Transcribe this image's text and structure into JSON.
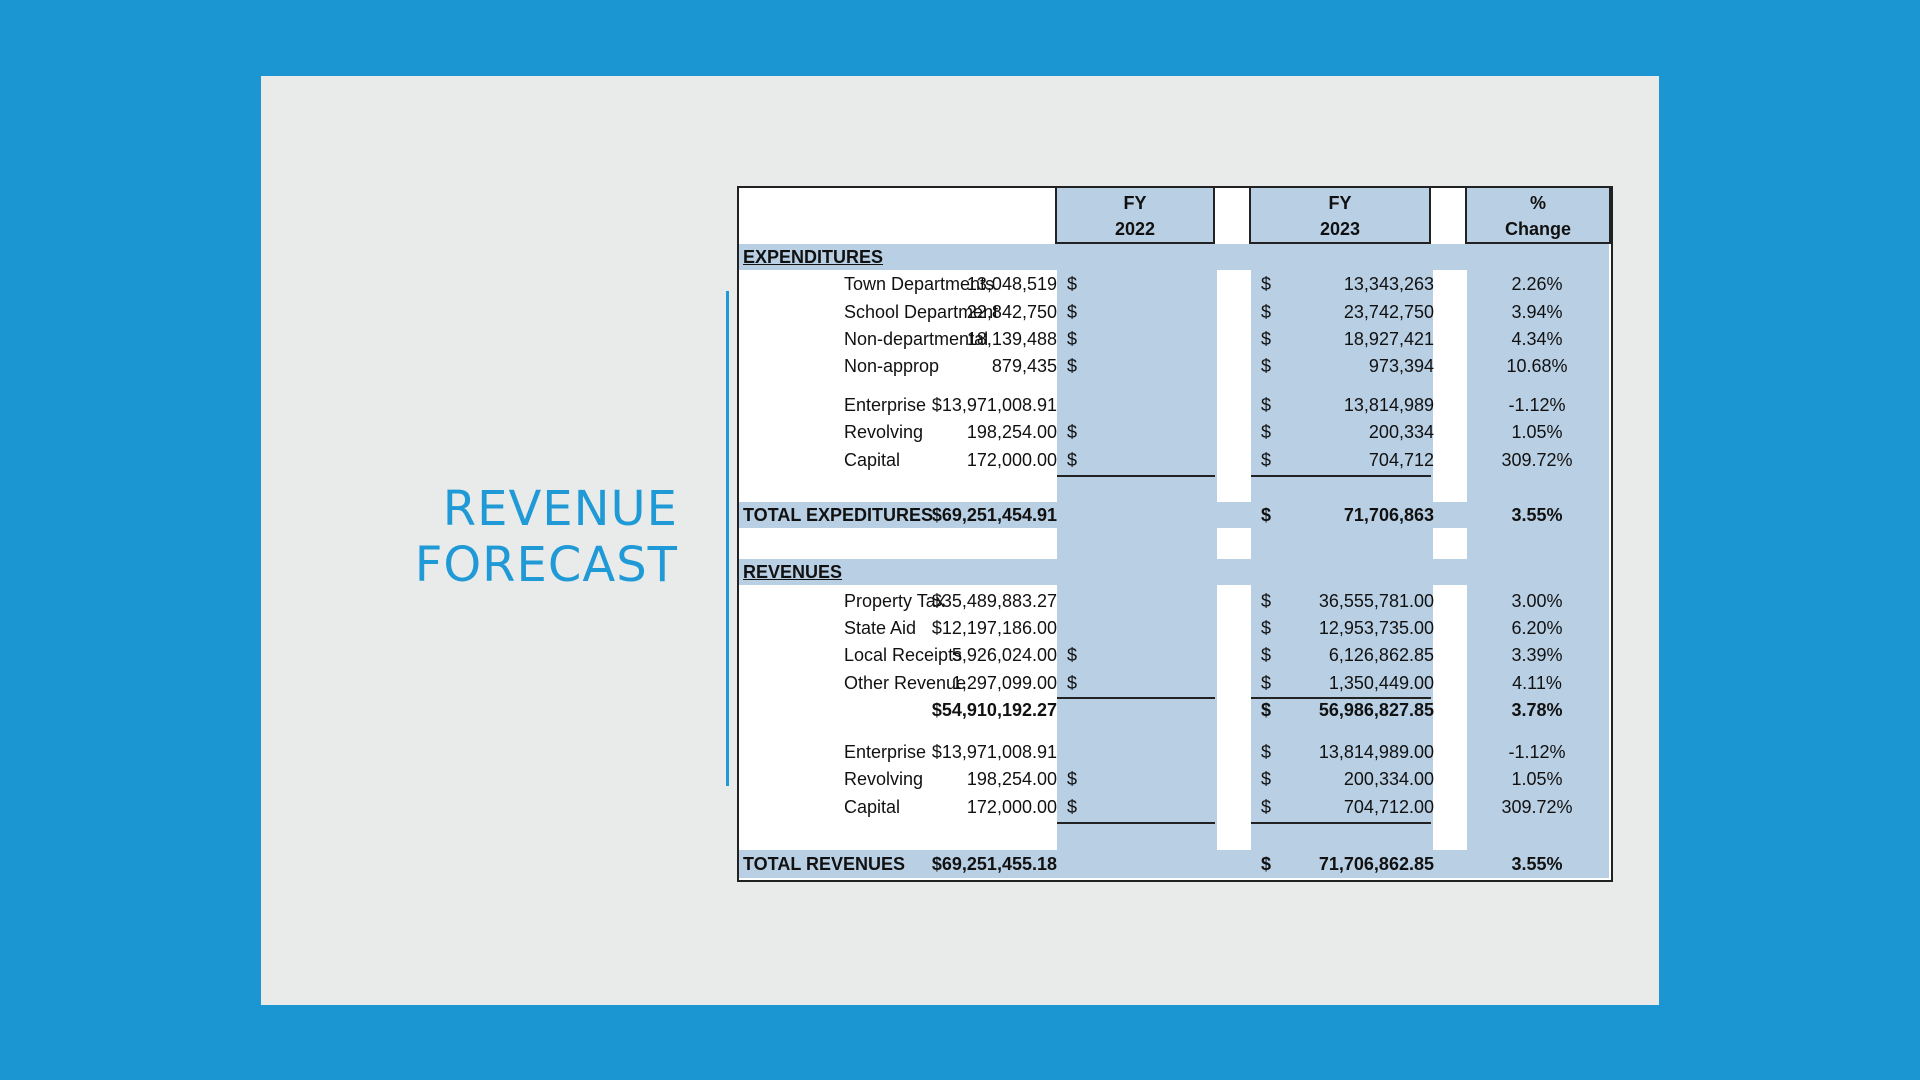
{
  "slide": {
    "title_line1": "REVENUE",
    "title_line2": "FORECAST"
  },
  "table": {
    "headers": {
      "fy2022_line1": "FY",
      "fy2022_line2": "2022",
      "fy2023_line1": "FY",
      "fy2023_line2": "2023",
      "change_line1": "%",
      "change_line2": "Change"
    },
    "expenditures": {
      "section_label": "EXPENDITURES",
      "rows": [
        {
          "label": "Town Departments",
          "d1": "$",
          "fy2022": "13,048,519",
          "d2": "$",
          "fy2023": "13,343,263",
          "change": "2.26%"
        },
        {
          "label": "School Department",
          "d1": "$",
          "fy2022": "22,842,750",
          "d2": "$",
          "fy2023": "23,742,750",
          "change": "3.94%"
        },
        {
          "label": "Non-departmental",
          "d1": "$",
          "fy2022": "18,139,488",
          "d2": "$",
          "fy2023": "18,927,421",
          "change": "4.34%"
        },
        {
          "label": "Non-approp",
          "d1": "$",
          "fy2022": "879,435",
          "d2": "$",
          "fy2023": "973,394",
          "change": "10.68%"
        },
        {
          "label": "Enterprise",
          "d1": "",
          "fy2022": "$13,971,008.91",
          "d2": "$",
          "fy2023": "13,814,989",
          "change": "-1.12%"
        },
        {
          "label": "Revolving",
          "d1": "$",
          "fy2022": "198,254.00",
          "d2": "$",
          "fy2023": "200,334",
          "change": "1.05%"
        },
        {
          "label": "Capital",
          "d1": "$",
          "fy2022": "172,000.00",
          "d2": "$",
          "fy2023": "704,712",
          "change": "309.72%"
        }
      ],
      "total": {
        "label": "TOTAL EXPEDITURES",
        "fy2022": "$69,251,454.91",
        "d2": "$",
        "fy2023": "71,706,863",
        "change": "3.55%"
      }
    },
    "revenues": {
      "section_label": "REVENUES",
      "rows": [
        {
          "label": "Property Tax",
          "d1": "",
          "fy2022": "$35,489,883.27",
          "d2": "$",
          "fy2023": "36,555,781.00",
          "change": "3.00%"
        },
        {
          "label": "State Aid",
          "d1": "",
          "fy2022": "$12,197,186.00",
          "d2": "$",
          "fy2023": "12,953,735.00",
          "change": "6.20%"
        },
        {
          "label": "Local Receipts",
          "d1": "$",
          "fy2022": "5,926,024.00",
          "d2": "$",
          "fy2023": "6,126,862.85",
          "change": "3.39%"
        },
        {
          "label": "Other Revenue",
          "d1": "$",
          "fy2022": "1,297,099.00",
          "d2": "$",
          "fy2023": "1,350,449.00",
          "change": "4.11%"
        }
      ],
      "subtotal": {
        "fy2022": "$54,910,192.27",
        "d2": "$",
        "fy2023": "56,986,827.85",
        "change": "3.78%"
      },
      "rows2": [
        {
          "label": "Enterprise",
          "d1": "",
          "fy2022": "$13,971,008.91",
          "d2": "$",
          "fy2023": "13,814,989.00",
          "change": "-1.12%"
        },
        {
          "label": "Revolving",
          "d1": "$",
          "fy2022": "198,254.00",
          "d2": "$",
          "fy2023": "200,334.00",
          "change": "1.05%"
        },
        {
          "label": "Capital",
          "d1": "$",
          "fy2022": "172,000.00",
          "d2": "$",
          "fy2023": "704,712.00",
          "change": "309.72%"
        }
      ],
      "total": {
        "label": "TOTAL REVENUES",
        "fy2022": "$69,251,455.18",
        "d2": "$",
        "fy2023": "71,706,862.85",
        "change": "3.55%"
      }
    }
  }
}
